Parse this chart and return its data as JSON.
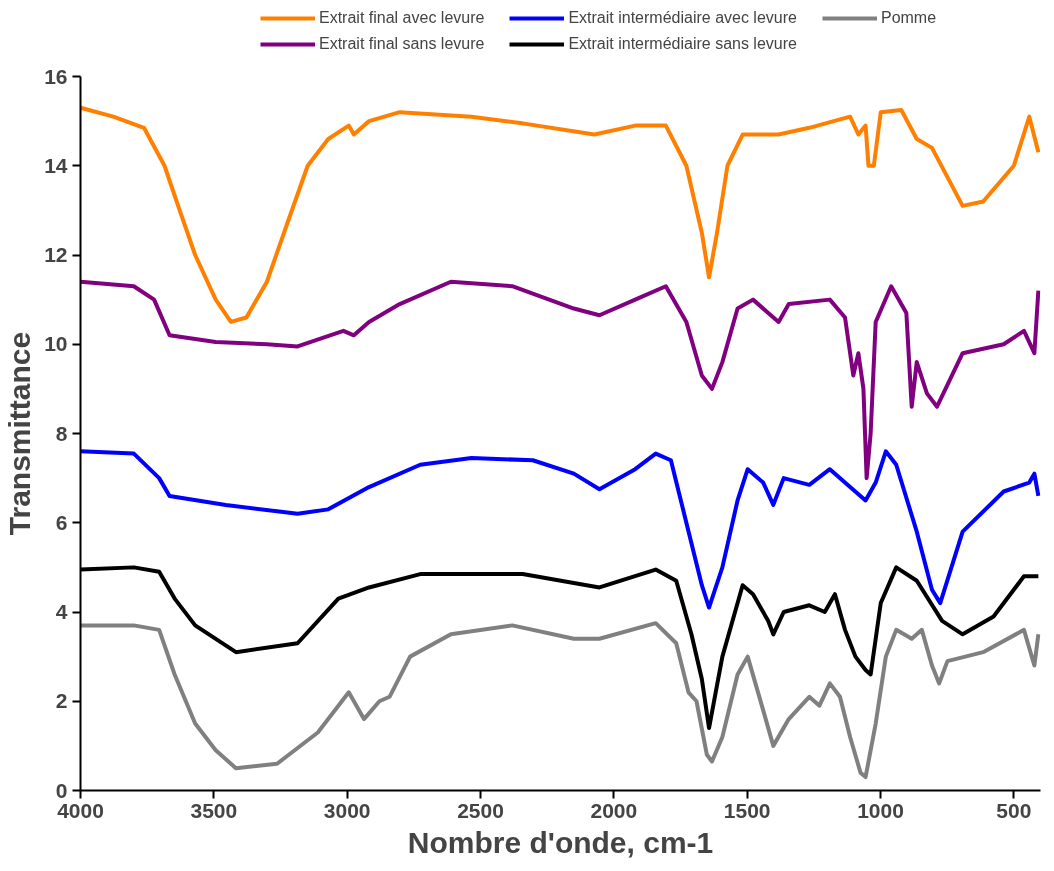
{
  "chart_data": {
    "type": "line",
    "xlabel": "Nombre d'onde, cm-1",
    "ylabel": "Transmittance",
    "xlim": [
      4000,
      400
    ],
    "ylim": [
      0,
      16
    ],
    "xticks": [
      4000,
      3500,
      3000,
      2500,
      2000,
      1500,
      1000,
      500
    ],
    "yticks": [
      0,
      2,
      4,
      6,
      8,
      10,
      12,
      14,
      16
    ],
    "grid": false,
    "legend": "top",
    "marker": "none",
    "line_style": "solid",
    "series": [
      {
        "name": "Extrait final avec levure",
        "color": "#ff8000",
        "x": [
          4000,
          3877,
          3762,
          3685,
          3628,
          3570,
          3493,
          3436,
          3378,
          3301,
          3225,
          3148,
          3071,
          2994,
          2975,
          2918,
          2803,
          2534,
          2342,
          2073,
          1920,
          1805,
          1728,
          1670,
          1643,
          1613,
          1574,
          1517,
          1382,
          1267,
          1114,
          1083,
          1056,
          1045,
          1025,
          999,
          922,
          864,
          807,
          692,
          615,
          500,
          442,
          408
        ],
        "values": [
          15.3,
          15.1,
          14.85,
          14.0,
          13.0,
          12.0,
          11.0,
          10.5,
          10.6,
          11.4,
          12.7,
          14.0,
          14.6,
          14.9,
          14.7,
          15.0,
          15.2,
          15.1,
          14.95,
          14.7,
          14.9,
          14.9,
          14.0,
          12.5,
          11.5,
          12.5,
          14.0,
          14.7,
          14.7,
          14.85,
          15.1,
          14.7,
          14.9,
          14.0,
          14.0,
          15.2,
          15.25,
          14.6,
          14.4,
          13.1,
          13.2,
          14.0,
          15.1,
          14.3
        ]
      },
      {
        "name": "Extrait intermédiaire avec levure",
        "color": "#0000ff",
        "x": [
          4000,
          3800,
          3705,
          3666,
          3455,
          3186,
          3071,
          2918,
          2726,
          2534,
          2304,
          2150,
          2054,
          1920,
          1843,
          1786,
          1728,
          1670,
          1643,
          1593,
          1536,
          1498,
          1440,
          1402,
          1363,
          1267,
          1190,
          1114,
          1056,
          1018,
          980,
          941,
          864,
          807,
          776,
          692,
          538,
          442,
          423,
          408
        ],
        "values": [
          7.6,
          7.55,
          7.0,
          6.6,
          6.4,
          6.2,
          6.3,
          6.8,
          7.3,
          7.45,
          7.4,
          7.1,
          6.75,
          7.2,
          7.55,
          7.4,
          6.0,
          4.6,
          4.1,
          5.0,
          6.5,
          7.2,
          6.9,
          6.4,
          7.0,
          6.85,
          7.2,
          6.8,
          6.5,
          6.9,
          7.6,
          7.3,
          5.8,
          4.5,
          4.2,
          5.8,
          6.7,
          6.9,
          7.1,
          6.6
        ]
      },
      {
        "name": "Pomme",
        "color": "#808080",
        "x": [
          4000,
          3800,
          3705,
          3647,
          3570,
          3493,
          3417,
          3263,
          3110,
          2994,
          2937,
          2879,
          2841,
          2764,
          2611,
          2381,
          2150,
          2054,
          1843,
          1766,
          1720,
          1690,
          1651,
          1632,
          1593,
          1536,
          1498,
          1440,
          1402,
          1344,
          1267,
          1229,
          1190,
          1152,
          1114,
          1075,
          1056,
          1018,
          980,
          941,
          883,
          845,
          807,
          780,
          749,
          615,
          462,
          423,
          408
        ],
        "values": [
          3.7,
          3.7,
          3.6,
          2.6,
          1.5,
          0.9,
          0.5,
          0.6,
          1.3,
          2.2,
          1.6,
          2.0,
          2.1,
          3.0,
          3.5,
          3.7,
          3.4,
          3.4,
          3.75,
          3.3,
          2.2,
          2.0,
          0.8,
          0.65,
          1.2,
          2.6,
          3.0,
          1.8,
          1.0,
          1.6,
          2.1,
          1.9,
          2.4,
          2.1,
          1.2,
          0.4,
          0.3,
          1.5,
          3.0,
          3.6,
          3.4,
          3.6,
          2.8,
          2.4,
          2.9,
          3.1,
          3.6,
          2.8,
          3.5
        ]
      },
      {
        "name": "Extrait final sans levure",
        "color": "#800080",
        "x": [
          4000,
          3800,
          3724,
          3666,
          3493,
          3301,
          3186,
          3014,
          2975,
          2918,
          2803,
          2611,
          2381,
          2150,
          2054,
          1920,
          1805,
          1728,
          1670,
          1632,
          1593,
          1536,
          1478,
          1421,
          1382,
          1344,
          1190,
          1133,
          1102,
          1083,
          1064,
          1052,
          1037,
          1018,
          960,
          903,
          883,
          864,
          826,
          788,
          692,
          538,
          462,
          423,
          408
        ],
        "values": [
          11.4,
          11.3,
          11.0,
          10.2,
          10.05,
          10.0,
          9.95,
          10.3,
          10.2,
          10.5,
          10.9,
          11.4,
          11.3,
          10.8,
          10.65,
          11.0,
          11.3,
          10.5,
          9.3,
          9.0,
          9.6,
          10.8,
          11.0,
          10.7,
          10.5,
          10.9,
          11.0,
          10.6,
          9.3,
          9.8,
          9.0,
          7.0,
          8.0,
          10.5,
          11.3,
          10.7,
          8.6,
          9.6,
          8.9,
          8.6,
          9.8,
          10.0,
          10.3,
          9.8,
          11.2
        ]
      },
      {
        "name": "Extrait intermédiaire sans levure",
        "color": "#000000",
        "x": [
          4000,
          3800,
          3705,
          3647,
          3570,
          3417,
          3186,
          3033,
          2918,
          2726,
          2342,
          2150,
          2054,
          1843,
          1766,
          1709,
          1670,
          1643,
          1593,
          1517,
          1478,
          1421,
          1402,
          1363,
          1267,
          1209,
          1171,
          1133,
          1094,
          1056,
          1037,
          999,
          941,
          864,
          769,
          692,
          576,
          462,
          408
        ],
        "values": [
          4.95,
          5.0,
          4.9,
          4.3,
          3.7,
          3.1,
          3.3,
          4.3,
          4.55,
          4.85,
          4.85,
          4.65,
          4.55,
          4.95,
          4.7,
          3.5,
          2.5,
          1.4,
          3.0,
          4.6,
          4.4,
          3.8,
          3.5,
          4.0,
          4.15,
          4.0,
          4.4,
          3.6,
          3.0,
          2.7,
          2.6,
          4.2,
          5.0,
          4.7,
          3.8,
          3.5,
          3.9,
          4.8,
          4.8
        ]
      }
    ]
  }
}
